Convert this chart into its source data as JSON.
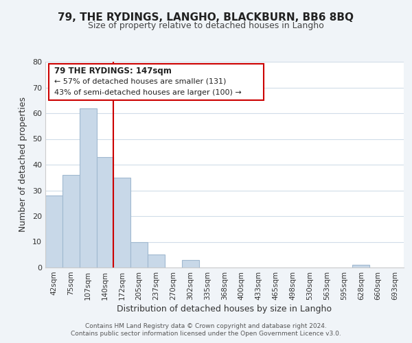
{
  "title": "79, THE RYDINGS, LANGHO, BLACKBURN, BB6 8BQ",
  "subtitle": "Size of property relative to detached houses in Langho",
  "xlabel": "Distribution of detached houses by size in Langho",
  "ylabel": "Number of detached properties",
  "footer_line1": "Contains HM Land Registry data © Crown copyright and database right 2024.",
  "footer_line2": "Contains public sector information licensed under the Open Government Licence v3.0.",
  "bar_labels": [
    "42sqm",
    "75sqm",
    "107sqm",
    "140sqm",
    "172sqm",
    "205sqm",
    "237sqm",
    "270sqm",
    "302sqm",
    "335sqm",
    "368sqm",
    "400sqm",
    "433sqm",
    "465sqm",
    "498sqm",
    "530sqm",
    "563sqm",
    "595sqm",
    "628sqm",
    "660sqm",
    "693sqm"
  ],
  "bar_heights": [
    28,
    36,
    62,
    43,
    35,
    10,
    5,
    0,
    3,
    0,
    0,
    0,
    0,
    0,
    0,
    0,
    0,
    0,
    1,
    0,
    0
  ],
  "bar_color": "#c8d8e8",
  "bar_edge_color": "#a0b8d0",
  "vline_x": 3.5,
  "vline_color": "#cc0000",
  "ylim": [
    0,
    80
  ],
  "yticks": [
    0,
    10,
    20,
    30,
    40,
    50,
    60,
    70,
    80
  ],
  "annotation_line1": "79 THE RYDINGS: 147sqm",
  "annotation_line2": "← 57% of detached houses are smaller (131)",
  "annotation_line3": "43% of semi-detached houses are larger (100) →",
  "ann_box_color": "#ffffff",
  "ann_box_edgecolor": "#cc0000",
  "bg_color": "#f0f4f8",
  "plot_bg_color": "#ffffff",
  "grid_color": "#d0dce8",
  "title_fontsize": 11,
  "subtitle_fontsize": 9,
  "xlabel_fontsize": 9,
  "ylabel_fontsize": 9,
  "tick_fontsize": 7.5,
  "ytick_fontsize": 8,
  "footer_fontsize": 6.5,
  "ann_fontsize_title": 8.5,
  "ann_fontsize_body": 8
}
